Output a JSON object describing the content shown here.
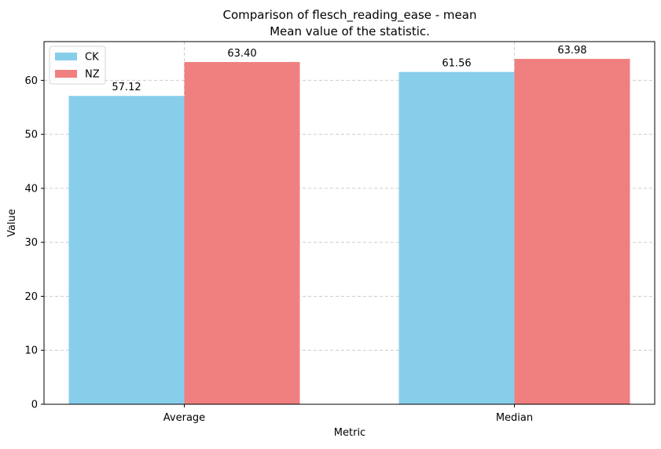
{
  "chart_data": {
    "type": "bar",
    "title": "Comparison of flesch_reading_ease - mean",
    "subtitle": "Mean value of the statistic.",
    "xlabel": "Metric",
    "ylabel": "Value",
    "categories": [
      "Average",
      "Median"
    ],
    "series": [
      {
        "name": "CK",
        "values": [
          57.12,
          61.56
        ],
        "color": "#87CEEB"
      },
      {
        "name": "NZ",
        "values": [
          63.4,
          63.98
        ],
        "color": "#F08080"
      }
    ],
    "data_labels": [
      [
        "57.12",
        "61.56"
      ],
      [
        "63.40",
        "63.98"
      ]
    ],
    "yticks": [
      0,
      10,
      20,
      30,
      40,
      50,
      60
    ],
    "ylim": [
      0,
      67.18
    ],
    "grid": true,
    "legend_position": "top-left"
  }
}
